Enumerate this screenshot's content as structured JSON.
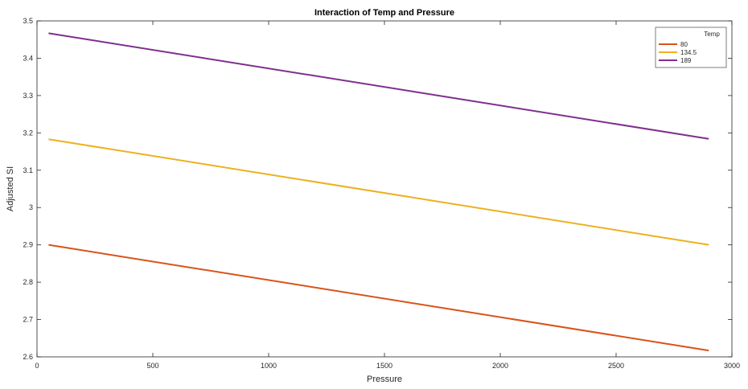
{
  "chart_data": {
    "type": "line",
    "title": "Interaction of Temp and Pressure",
    "xlabel": "Pressure",
    "ylabel": "Adjusted SI",
    "xlim": [
      0,
      3000
    ],
    "ylim": [
      2.6,
      3.5
    ],
    "xticks": [
      0,
      500,
      1000,
      1500,
      2000,
      2500,
      3000
    ],
    "yticks": [
      2.6,
      2.7,
      2.8,
      2.9,
      3,
      3.1,
      3.2,
      3.3,
      3.4,
      3.5
    ],
    "grid": false,
    "legend": {
      "title": "Temp",
      "location": "top-right"
    },
    "series": [
      {
        "name": "80",
        "color": "#d95319",
        "x": [
          50,
          2900
        ],
        "y": [
          2.9,
          2.617
        ]
      },
      {
        "name": "134.5",
        "color": "#edb120",
        "x": [
          50,
          2900
        ],
        "y": [
          3.183,
          2.9
        ]
      },
      {
        "name": "189",
        "color": "#7e2f8e",
        "x": [
          50,
          2900
        ],
        "y": [
          3.467,
          3.184
        ]
      }
    ]
  }
}
